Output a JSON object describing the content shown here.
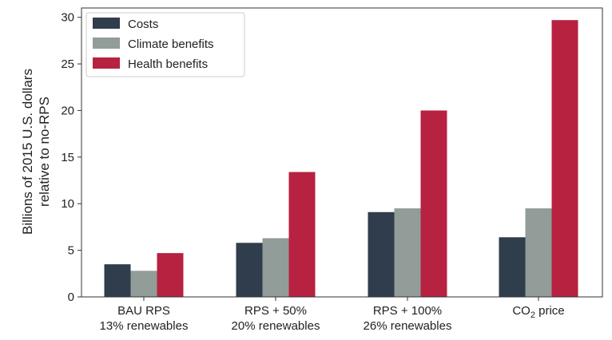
{
  "chart_data": {
    "type": "bar",
    "title": "",
    "xlabel": "",
    "ylabel_lines": [
      "Billions of 2015 U.S. dollars",
      "relative to no-RPS"
    ],
    "ylim": [
      0,
      31
    ],
    "yticks": [
      0,
      5,
      10,
      15,
      20,
      25,
      30
    ],
    "grid": false,
    "legend_position": "top-left",
    "categories": [
      {
        "line1": "BAU RPS",
        "line2": "13% renewables",
        "line1_main": "",
        "line1_sub": "",
        "line1_rest": ""
      },
      {
        "line1": "RPS + 50%",
        "line2": "20% renewables",
        "line1_main": "",
        "line1_sub": "",
        "line1_rest": ""
      },
      {
        "line1": "RPS + 100%",
        "line2": "26% renewables",
        "line1_main": "",
        "line1_sub": "",
        "line1_rest": ""
      },
      {
        "line1": "",
        "line2": "",
        "line1_main": "CO",
        "line1_sub": "2",
        "line1_rest": " price"
      }
    ],
    "series": [
      {
        "name": "Costs",
        "color": "#2f3d4c",
        "values": [
          3.5,
          5.8,
          9.1,
          6.4
        ]
      },
      {
        "name": "Climate benefits",
        "color": "#929c98",
        "values": [
          2.8,
          6.3,
          9.5,
          9.5
        ]
      },
      {
        "name": "Health benefits",
        "color": "#b72240",
        "values": [
          4.7,
          13.4,
          20.0,
          29.7
        ]
      }
    ]
  }
}
